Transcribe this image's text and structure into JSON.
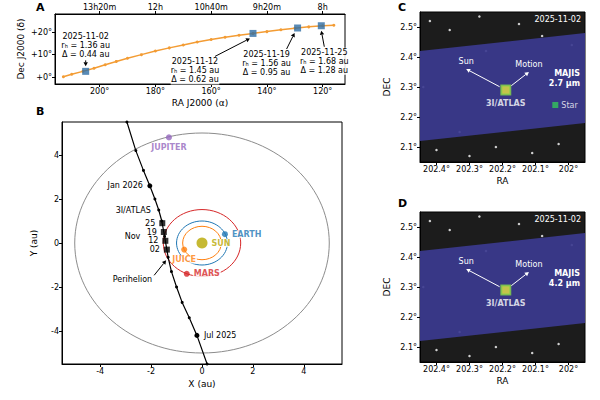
{
  "chart_data": [
    {
      "panel": "A",
      "type": "line",
      "xlabel": "RA J2000 (α)",
      "ylabel": "Dec J2000 (δ)",
      "xlim": [
        216,
        112
      ],
      "xticks": [
        {
          "value": 200,
          "label": "200°"
        },
        {
          "value": 180,
          "label": "180°"
        },
        {
          "value": 160,
          "label": "160°"
        },
        {
          "value": 140,
          "label": "140°"
        },
        {
          "value": 120,
          "label": "120°"
        }
      ],
      "x2ticks": [
        {
          "value": 200,
          "label": "13h20m"
        },
        {
          "value": 180,
          "label": "12h"
        },
        {
          "value": 160,
          "label": "10h40m"
        },
        {
          "value": 140,
          "label": "9h20m"
        },
        {
          "value": 120,
          "label": "8h"
        }
      ],
      "ylim": [
        -3,
        28
      ],
      "yticks": [
        {
          "value": 0,
          "label": "+0°"
        },
        {
          "value": 10,
          "label": "+10°"
        },
        {
          "value": 20,
          "label": "+20°"
        }
      ],
      "grid": false,
      "color": "#f39c34",
      "marker": "circle",
      "x": [
        213,
        210,
        206,
        202,
        198,
        194,
        190,
        185,
        180,
        175,
        170,
        165,
        160,
        155,
        150,
        145,
        140,
        135,
        130,
        125,
        120,
        116
      ],
      "values": [
        0.2,
        1.3,
        2.6,
        4.0,
        5.5,
        7.0,
        8.4,
        10.0,
        11.6,
        13.0,
        14.3,
        15.6,
        16.7,
        17.7,
        18.6,
        19.4,
        20.2,
        21.0,
        21.7,
        22.3,
        22.8,
        23.0
      ],
      "observations": [
        {
          "x": 205,
          "y": 2.6,
          "color": "#2e6da4",
          "marker": "square",
          "text": [
            "2025-11-02",
            "rₕ = 1.36 au",
            "Δ = 0.44 au"
          ]
        },
        {
          "x": 145,
          "y": 19.4,
          "color": "#2e6da4",
          "marker": "square",
          "text": [
            "2025-11-12",
            "rₕ = 1.45 au",
            "Δ = 0.62 au"
          ]
        },
        {
          "x": 129,
          "y": 21.8,
          "color": "#2e6da4",
          "marker": "square",
          "text": [
            "2025-11-19",
            "rₕ = 1.56 au",
            "Δ = 0.95 au"
          ]
        },
        {
          "x": 120.5,
          "y": 22.8,
          "color": "#2e6da4",
          "marker": "square",
          "text": [
            "2025-11-25",
            "rₕ = 1.68 au",
            "Δ = 1.28 au"
          ]
        }
      ]
    },
    {
      "panel": "B",
      "type": "orbit",
      "xlabel": "X (au)",
      "ylabel": "Y (au)",
      "xlim": [
        -5.5,
        5.5
      ],
      "xticks": [
        -4,
        -2,
        0,
        2,
        4
      ],
      "ylim": [
        -5.5,
        5.5
      ],
      "yticks": [
        -4,
        -2,
        0,
        2,
        4
      ],
      "grid": false,
      "orbit_center": [
        0,
        0
      ],
      "orbits": [
        {
          "radius": 5.0,
          "color": "#8c8c8c"
        },
        {
          "radius": 1.52,
          "color": "#d62728"
        },
        {
          "radius": 1.0,
          "color": "#1f77b4"
        },
        {
          "radius": 0.76,
          "color": "#ff7f0e"
        }
      ],
      "bodies": [
        {
          "name": "JUPITER",
          "x": -1.3,
          "y": 4.8,
          "color": "#9467bd"
        },
        {
          "name": "EARTH",
          "x": 0.9,
          "y": 0.4,
          "color": "#1f77b4"
        },
        {
          "name": "MARS",
          "x": -0.6,
          "y": -1.4,
          "color": "#d62728"
        },
        {
          "name": "SUN",
          "x": 0,
          "y": 0,
          "color": "#b8a800"
        },
        {
          "name": "JUICE",
          "x": -0.7,
          "y": -0.3,
          "color": "#ff7f0e"
        }
      ],
      "trajectory": {
        "color": "#000000",
        "marker": "circle",
        "x": [
          -2.95,
          -2.6,
          -2.3,
          -2.05,
          -1.85,
          -1.7,
          -1.58,
          -1.47,
          -1.33,
          -1.2,
          -1.0,
          -0.78,
          -0.5,
          -0.2,
          0.2
        ],
        "y": [
          5.5,
          4.2,
          3.3,
          2.6,
          2.0,
          1.5,
          1.0,
          0.3,
          -0.65,
          -1.3,
          -2.0,
          -2.7,
          -3.4,
          -4.2,
          -5.5
        ]
      },
      "observations": {
        "label": "Nov",
        "text": [
          "25",
          "19",
          "12",
          "02"
        ],
        "x": [
          -1.56,
          -1.5,
          -1.44,
          -1.38
        ],
        "y": [
          0.9,
          0.5,
          0.1,
          -0.3
        ],
        "color": "#000000",
        "marker": "square"
      },
      "annotations": [
        {
          "text": "3I/ATLAS",
          "x": -1.7,
          "y": 1.5
        },
        {
          "text": "Jan 2026",
          "x": -2.05,
          "y": 2.6,
          "marker": "circle"
        },
        {
          "text": "Jul 2025",
          "x": -0.2,
          "y": -4.2,
          "marker": "circle"
        },
        {
          "text": "Perihelion",
          "x": -1.33,
          "y": -0.65,
          "marker": "arrow"
        }
      ]
    },
    {
      "panel": "C",
      "type": "image",
      "title": "2025-11-02",
      "xlabel": "RA",
      "ylabel": "DEC",
      "xlim": [
        202.45,
        201.95
      ],
      "xticks": [
        {
          "value": 202.4,
          "label": "202.4°"
        },
        {
          "value": 202.3,
          "label": "202.3°"
        },
        {
          "value": 202.2,
          "label": "202.2°"
        },
        {
          "value": 202.1,
          "label": "202.1°"
        },
        {
          "value": 202,
          "label": "202°"
        }
      ],
      "ylim": [
        2.05,
        2.55
      ],
      "yticks": [
        {
          "value": 2.1,
          "label": "2.1°"
        },
        {
          "value": 2.2,
          "label": "2.2°"
        },
        {
          "value": 2.3,
          "label": "2.3°"
        },
        {
          "value": 2.4,
          "label": "2.4°"
        },
        {
          "value": 2.5,
          "label": "2.5°"
        }
      ],
      "grid": false,
      "footprint": {
        "text": [
          "MAJIS",
          "2.7 μm"
        ],
        "color": "#3b3a8f",
        "x": [
          202.45,
          201.95,
          201.95,
          202.45
        ],
        "y": [
          2.42,
          2.48,
          2.18,
          2.12
        ]
      },
      "target": {
        "text": "3I/ATLAS",
        "x": 202.19,
        "y": 2.29,
        "color": "#e6e63c"
      },
      "directions": [
        {
          "text": "Sun",
          "x": 202.31,
          "y": 2.36
        },
        {
          "text": "Motion",
          "x": 202.12,
          "y": 2.35
        }
      ],
      "reference_star": {
        "text": "Star",
        "x": 202.04,
        "y": 2.24,
        "color": "#33c45a",
        "marker": "square"
      },
      "stars": {
        "color": "#ffffff",
        "x": [
          202.42,
          202.36,
          202.27,
          202.15,
          202.08,
          201.99,
          202.4,
          202.3,
          202.22,
          202.11,
          202.03,
          202.44,
          202.33,
          202.0,
          202.25
        ],
        "y": [
          2.52,
          2.49,
          2.535,
          2.51,
          2.47,
          2.44,
          2.09,
          2.07,
          2.1,
          2.08,
          2.11,
          2.3,
          2.15,
          2.3,
          2.42
        ]
      }
    },
    {
      "panel": "D",
      "type": "image",
      "title": "2025-11-02",
      "xlabel": "RA",
      "ylabel": "DEC",
      "xlim": [
        202.45,
        201.95
      ],
      "xticks": [
        {
          "value": 202.4,
          "label": "202.4°"
        },
        {
          "value": 202.3,
          "label": "202.3°"
        },
        {
          "value": 202.2,
          "label": "202.2°"
        },
        {
          "value": 202.1,
          "label": "202.1°"
        },
        {
          "value": 202,
          "label": "202°"
        }
      ],
      "ylim": [
        2.05,
        2.55
      ],
      "yticks": [
        {
          "value": 2.1,
          "label": "2.1°"
        },
        {
          "value": 2.2,
          "label": "2.2°"
        },
        {
          "value": 2.3,
          "label": "2.3°"
        },
        {
          "value": 2.4,
          "label": "2.4°"
        },
        {
          "value": 2.5,
          "label": "2.5°"
        }
      ],
      "grid": false,
      "footprint": {
        "text": [
          "MAJIS",
          "4.2 μm"
        ],
        "color": "#3b3a8f",
        "x": [
          202.45,
          201.95,
          201.95,
          202.45
        ],
        "y": [
          2.42,
          2.48,
          2.18,
          2.12
        ]
      },
      "target": {
        "text": "3I/ATLAS",
        "x": 202.19,
        "y": 2.29,
        "color": "#e6e63c"
      },
      "directions": [
        {
          "text": "Sun",
          "x": 202.31,
          "y": 2.36
        },
        {
          "text": "Motion",
          "x": 202.12,
          "y": 2.35
        }
      ],
      "stars": {
        "color": "#ffffff",
        "x": [
          202.42,
          202.36,
          202.27,
          202.15,
          202.08,
          201.99,
          202.4,
          202.3,
          202.22,
          202.11,
          202.03,
          202.44,
          202.33,
          202.0,
          202.25
        ],
        "y": [
          2.52,
          2.49,
          2.535,
          2.51,
          2.47,
          2.44,
          2.09,
          2.07,
          2.1,
          2.08,
          2.11,
          2.3,
          2.15,
          2.3,
          2.42
        ]
      }
    }
  ]
}
